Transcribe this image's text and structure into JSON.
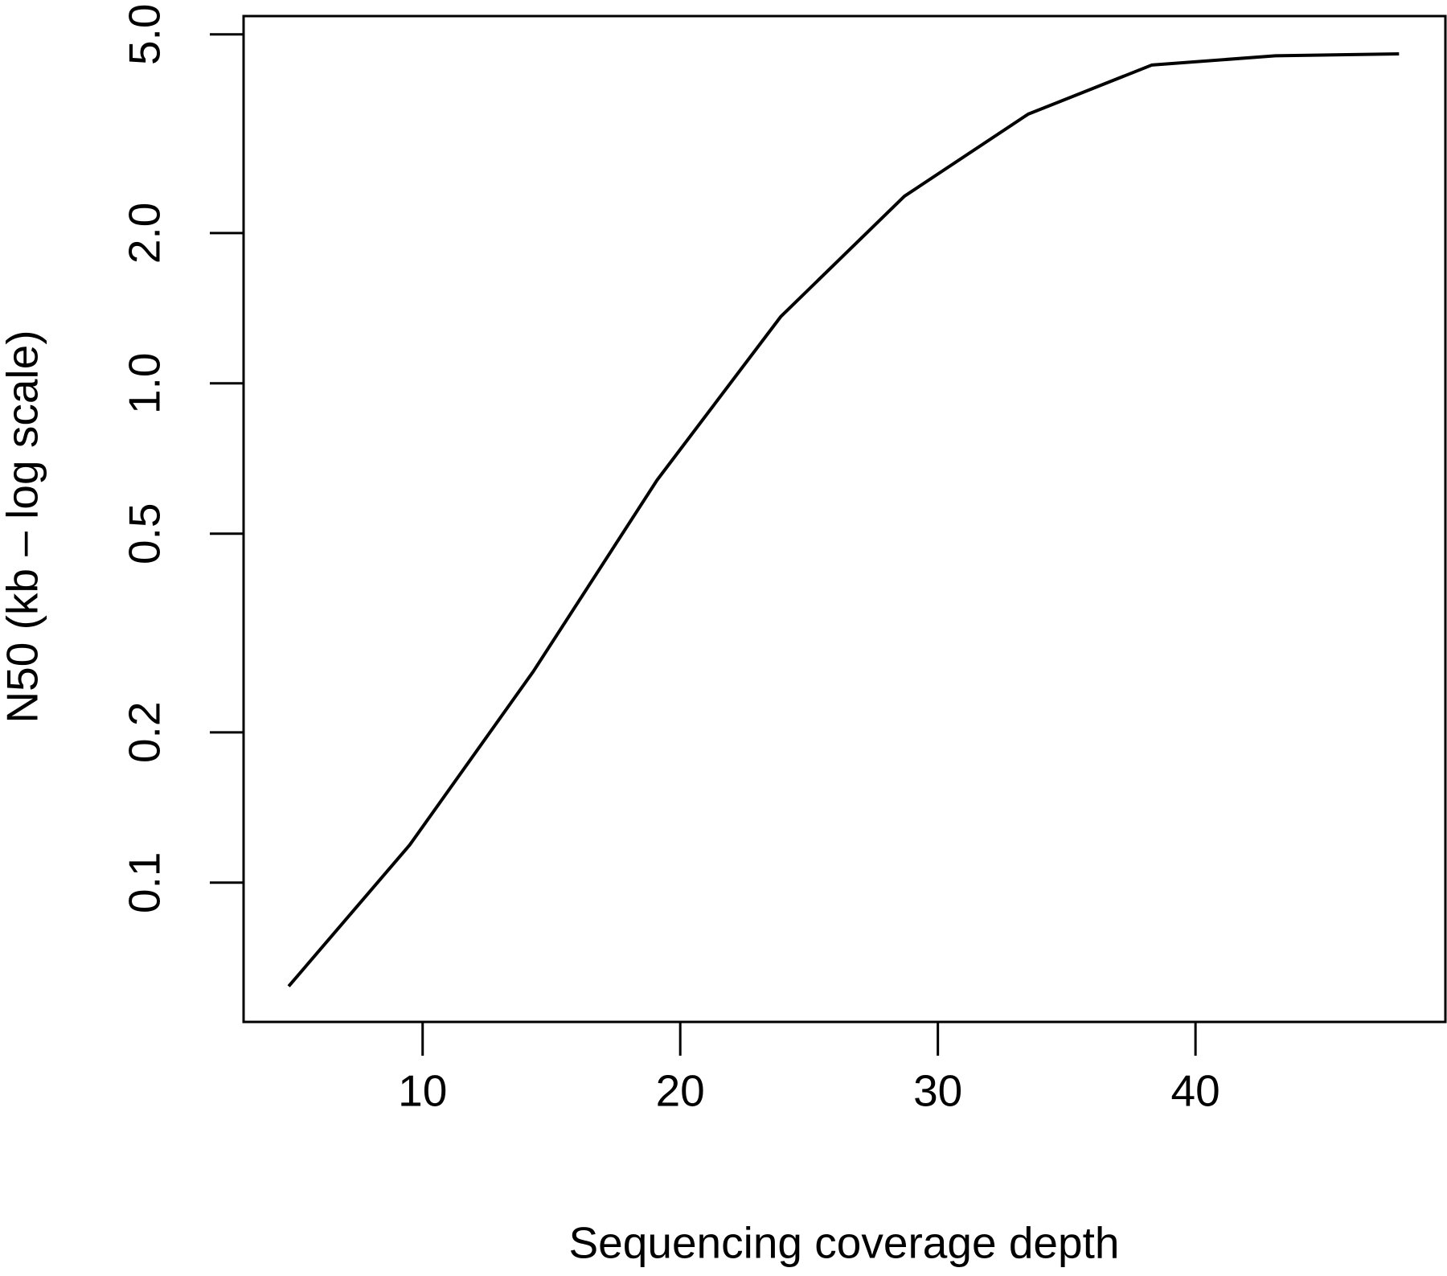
{
  "chart_data": {
    "type": "line",
    "x_label": "Sequencing coverage depth",
    "y_label": "N50 (kb – log scale)",
    "x": [
      4.8,
      9.5,
      14.3,
      19.1,
      23.9,
      28.7,
      33.5,
      38.3,
      43.1,
      47.9
    ],
    "series": [
      {
        "color": "#000000",
        "values": [
          0.062,
          0.119,
          0.265,
          0.64,
          1.36,
          2.37,
          3.46,
          4.34,
          4.53,
          4.57
        ]
      }
    ],
    "xlim": [
      3.05,
      49.7
    ],
    "xticks": [
      10,
      20,
      30,
      40
    ],
    "ylim": [
      0.0526,
      5.44
    ],
    "yticks": [
      0.1,
      0.2,
      0.5,
      {
        "value": 1,
        "label": "1.0"
      },
      {
        "value": 2,
        "label": "2.0"
      },
      {
        "value": 5,
        "label": "5.0"
      }
    ],
    "y_log": true
  }
}
